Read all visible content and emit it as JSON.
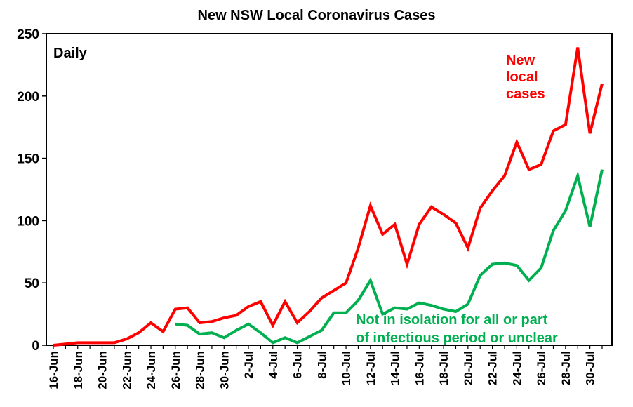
{
  "chart_data": {
    "type": "line",
    "title": "New NSW Local Coronavirus Cases",
    "frequency_label": "Daily",
    "ylim": [
      0,
      250
    ],
    "yticks": [
      0,
      50,
      100,
      150,
      200,
      250
    ],
    "grid": false,
    "x": [
      "16-Jun",
      "17-Jun",
      "18-Jun",
      "19-Jun",
      "20-Jun",
      "21-Jun",
      "22-Jun",
      "23-Jun",
      "24-Jun",
      "25-Jun",
      "26-Jun",
      "27-Jun",
      "28-Jun",
      "29-Jun",
      "30-Jun",
      "1-Jul",
      "2-Jul",
      "3-Jul",
      "4-Jul",
      "5-Jul",
      "6-Jul",
      "7-Jul",
      "8-Jul",
      "9-Jul",
      "10-Jul",
      "11-Jul",
      "12-Jul",
      "13-Jul",
      "14-Jul",
      "15-Jul",
      "16-Jul",
      "17-Jul",
      "18-Jul",
      "19-Jul",
      "20-Jul",
      "21-Jul",
      "22-Jul",
      "23-Jul",
      "24-Jul",
      "25-Jul",
      "26-Jul",
      "27-Jul",
      "28-Jul",
      "29-Jul",
      "30-Jul",
      "31-Jul"
    ],
    "xtick_labels": [
      "16-Jun",
      "18-Jun",
      "20-Jun",
      "22-Jun",
      "24-Jun",
      "26-Jun",
      "28-Jun",
      "30-Jun",
      "2-Jul",
      "4-Jul",
      "6-Jul",
      "8-Jul",
      "10-Jul",
      "12-Jul",
      "14-Jul",
      "16-Jul",
      "18-Jul",
      "20-Jul",
      "22-Jul",
      "24-Jul",
      "26-Jul",
      "28-Jul",
      "30-Jul"
    ],
    "series": [
      {
        "name": "New local cases",
        "label_lines": [
          "New",
          "local",
          "cases"
        ],
        "color": "#ff0000",
        "values": [
          0,
          1,
          2,
          2,
          2,
          2,
          5,
          10,
          18,
          11,
          29,
          30,
          18,
          19,
          22,
          24,
          31,
          35,
          16,
          35,
          18,
          27,
          38,
          44,
          50,
          78,
          112,
          89,
          97,
          65,
          97,
          111,
          105,
          98,
          78,
          110,
          124,
          136,
          163,
          141,
          145,
          172,
          177,
          239,
          170,
          210
        ]
      },
      {
        "name": "Not in isolation for all or part of infectious period or unclear",
        "label_lines": [
          "Not in isolation for all or part",
          "of infectious period or unclear"
        ],
        "color": "#00b050",
        "values": [
          null,
          null,
          null,
          null,
          null,
          null,
          null,
          null,
          null,
          null,
          17,
          16,
          9,
          10,
          6,
          12,
          17,
          10,
          2,
          6,
          2,
          7,
          12,
          26,
          26,
          36,
          52,
          25,
          30,
          29,
          34,
          32,
          29,
          27,
          33,
          56,
          65,
          66,
          64,
          52,
          62,
          92,
          108,
          136,
          95,
          141
        ]
      }
    ]
  }
}
